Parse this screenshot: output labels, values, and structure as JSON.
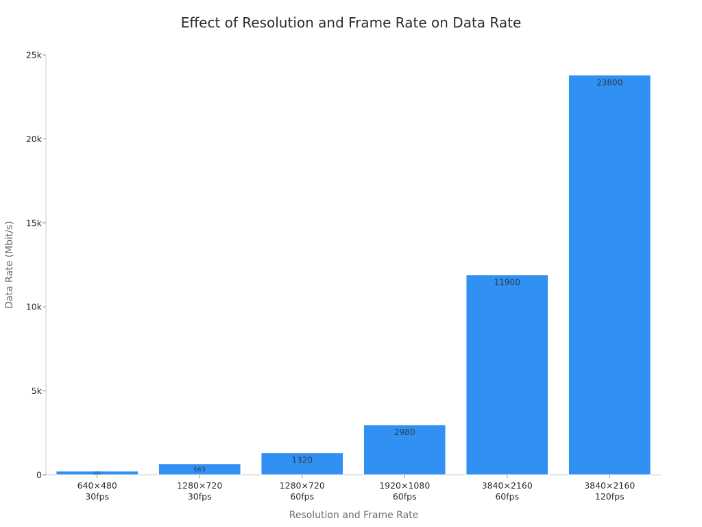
{
  "chart_data": {
    "type": "bar",
    "title": "Effect of Resolution and Frame Rate on Data Rate",
    "xlabel": "Resolution and Frame Rate",
    "ylabel": "Data Rate (Mbit/s)",
    "ylim": [
      0,
      25000
    ],
    "yticks": [
      0,
      5000,
      10000,
      15000,
      20000,
      25000
    ],
    "ytick_labels": [
      "0",
      "5k",
      "10k",
      "15k",
      "20k",
      "25k"
    ],
    "categories": [
      [
        "640×480",
        "30fps"
      ],
      [
        "1280×720",
        "30fps"
      ],
      [
        "1280×720",
        "60fps"
      ],
      [
        "1920×1080",
        "60fps"
      ],
      [
        "3840×2160",
        "60fps"
      ],
      [
        "3840×2160",
        "120fps"
      ]
    ],
    "values": [
      221,
      663,
      1320,
      2980,
      11900,
      23800
    ],
    "value_labels": [
      "221",
      "663",
      "1320",
      "2980",
      "11900",
      "23800"
    ],
    "grid": false,
    "legend": "none",
    "colors": {
      "bar": "#3091f2"
    }
  }
}
